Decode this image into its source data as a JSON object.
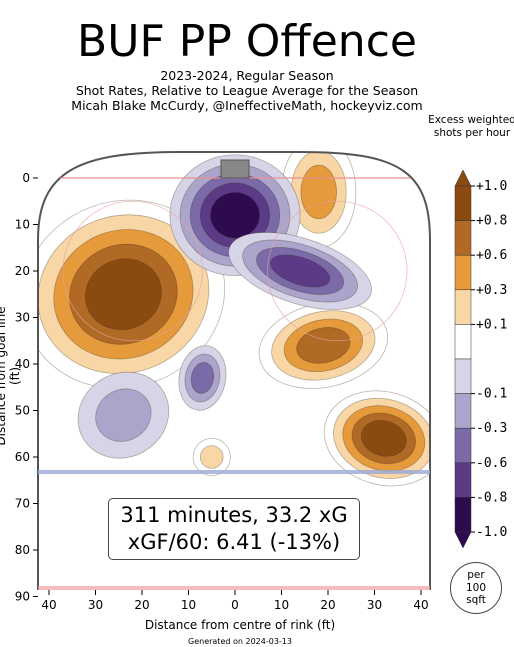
{
  "chart_data": {
    "type": "heatmap",
    "title": "BUF PP Offence",
    "subtitle_lines": [
      "2023-2024, Regular Season",
      "Shot Rates, Relative to League Average for the Season",
      "Micah Blake McCurdy, @IneffectiveMath, hockeyviz.com"
    ],
    "xlabel": "Distance from centre of rink (ft)",
    "ylabel": "Distance from goal line (ft)",
    "x_ticks": [
      40,
      30,
      20,
      10,
      0,
      10,
      20,
      30,
      40
    ],
    "y_ticks": [
      0,
      10,
      20,
      30,
      40,
      50,
      60,
      70,
      80,
      90
    ],
    "xlim": [
      -42.5,
      42.5
    ],
    "ylim": [
      90,
      -11
    ],
    "colorbar": {
      "title": "Excess weighted shots per hour",
      "tick_labels": [
        "+1.0",
        "+0.8",
        "+0.6",
        "+0.3",
        "+0.1",
        "-0.1",
        "-0.3",
        "-0.6",
        "-0.8",
        "-1.0"
      ],
      "levels": [
        1.0,
        0.8,
        0.6,
        0.3,
        0.1,
        -0.1,
        -0.3,
        -0.6,
        -0.8,
        -1.0
      ],
      "colors": [
        "#8a4a10",
        "#b06a25",
        "#e59a3c",
        "#f8d6a6",
        "#ffffff",
        "#d6d4e6",
        "#aba5cc",
        "#7a6aa8",
        "#5b3a86",
        "#2e0a4e"
      ]
    },
    "hotspots": [
      {
        "x": -24,
        "y": 25,
        "value": 1.0,
        "label": "left faceoff circle"
      },
      {
        "x": 19,
        "y": 36,
        "value": 0.9,
        "label": "right slot"
      },
      {
        "x": 32,
        "y": 56,
        "value": 1.0,
        "label": "right point"
      },
      {
        "x": 18,
        "y": 3,
        "value": 0.6,
        "label": "right of crease"
      },
      {
        "x": -5,
        "y": 60,
        "value": 0.3,
        "label": "high slot"
      },
      {
        "x": 0,
        "y": 8,
        "value": -1.0,
        "label": "crease"
      },
      {
        "x": 14,
        "y": 20,
        "value": -0.9,
        "label": "right low slot"
      },
      {
        "x": -7,
        "y": 43,
        "value": -0.7,
        "label": "mid slot"
      },
      {
        "x": -24,
        "y": 51,
        "value": -0.4,
        "label": "left point"
      }
    ]
  },
  "stats": {
    "line1": "311 minutes, 33.2 xG",
    "line2": "xGF/60: 6.41 (-13%)"
  },
  "per_area": [
    "per",
    "100",
    "sqft"
  ],
  "footer": "Generated on 2024-03-13"
}
